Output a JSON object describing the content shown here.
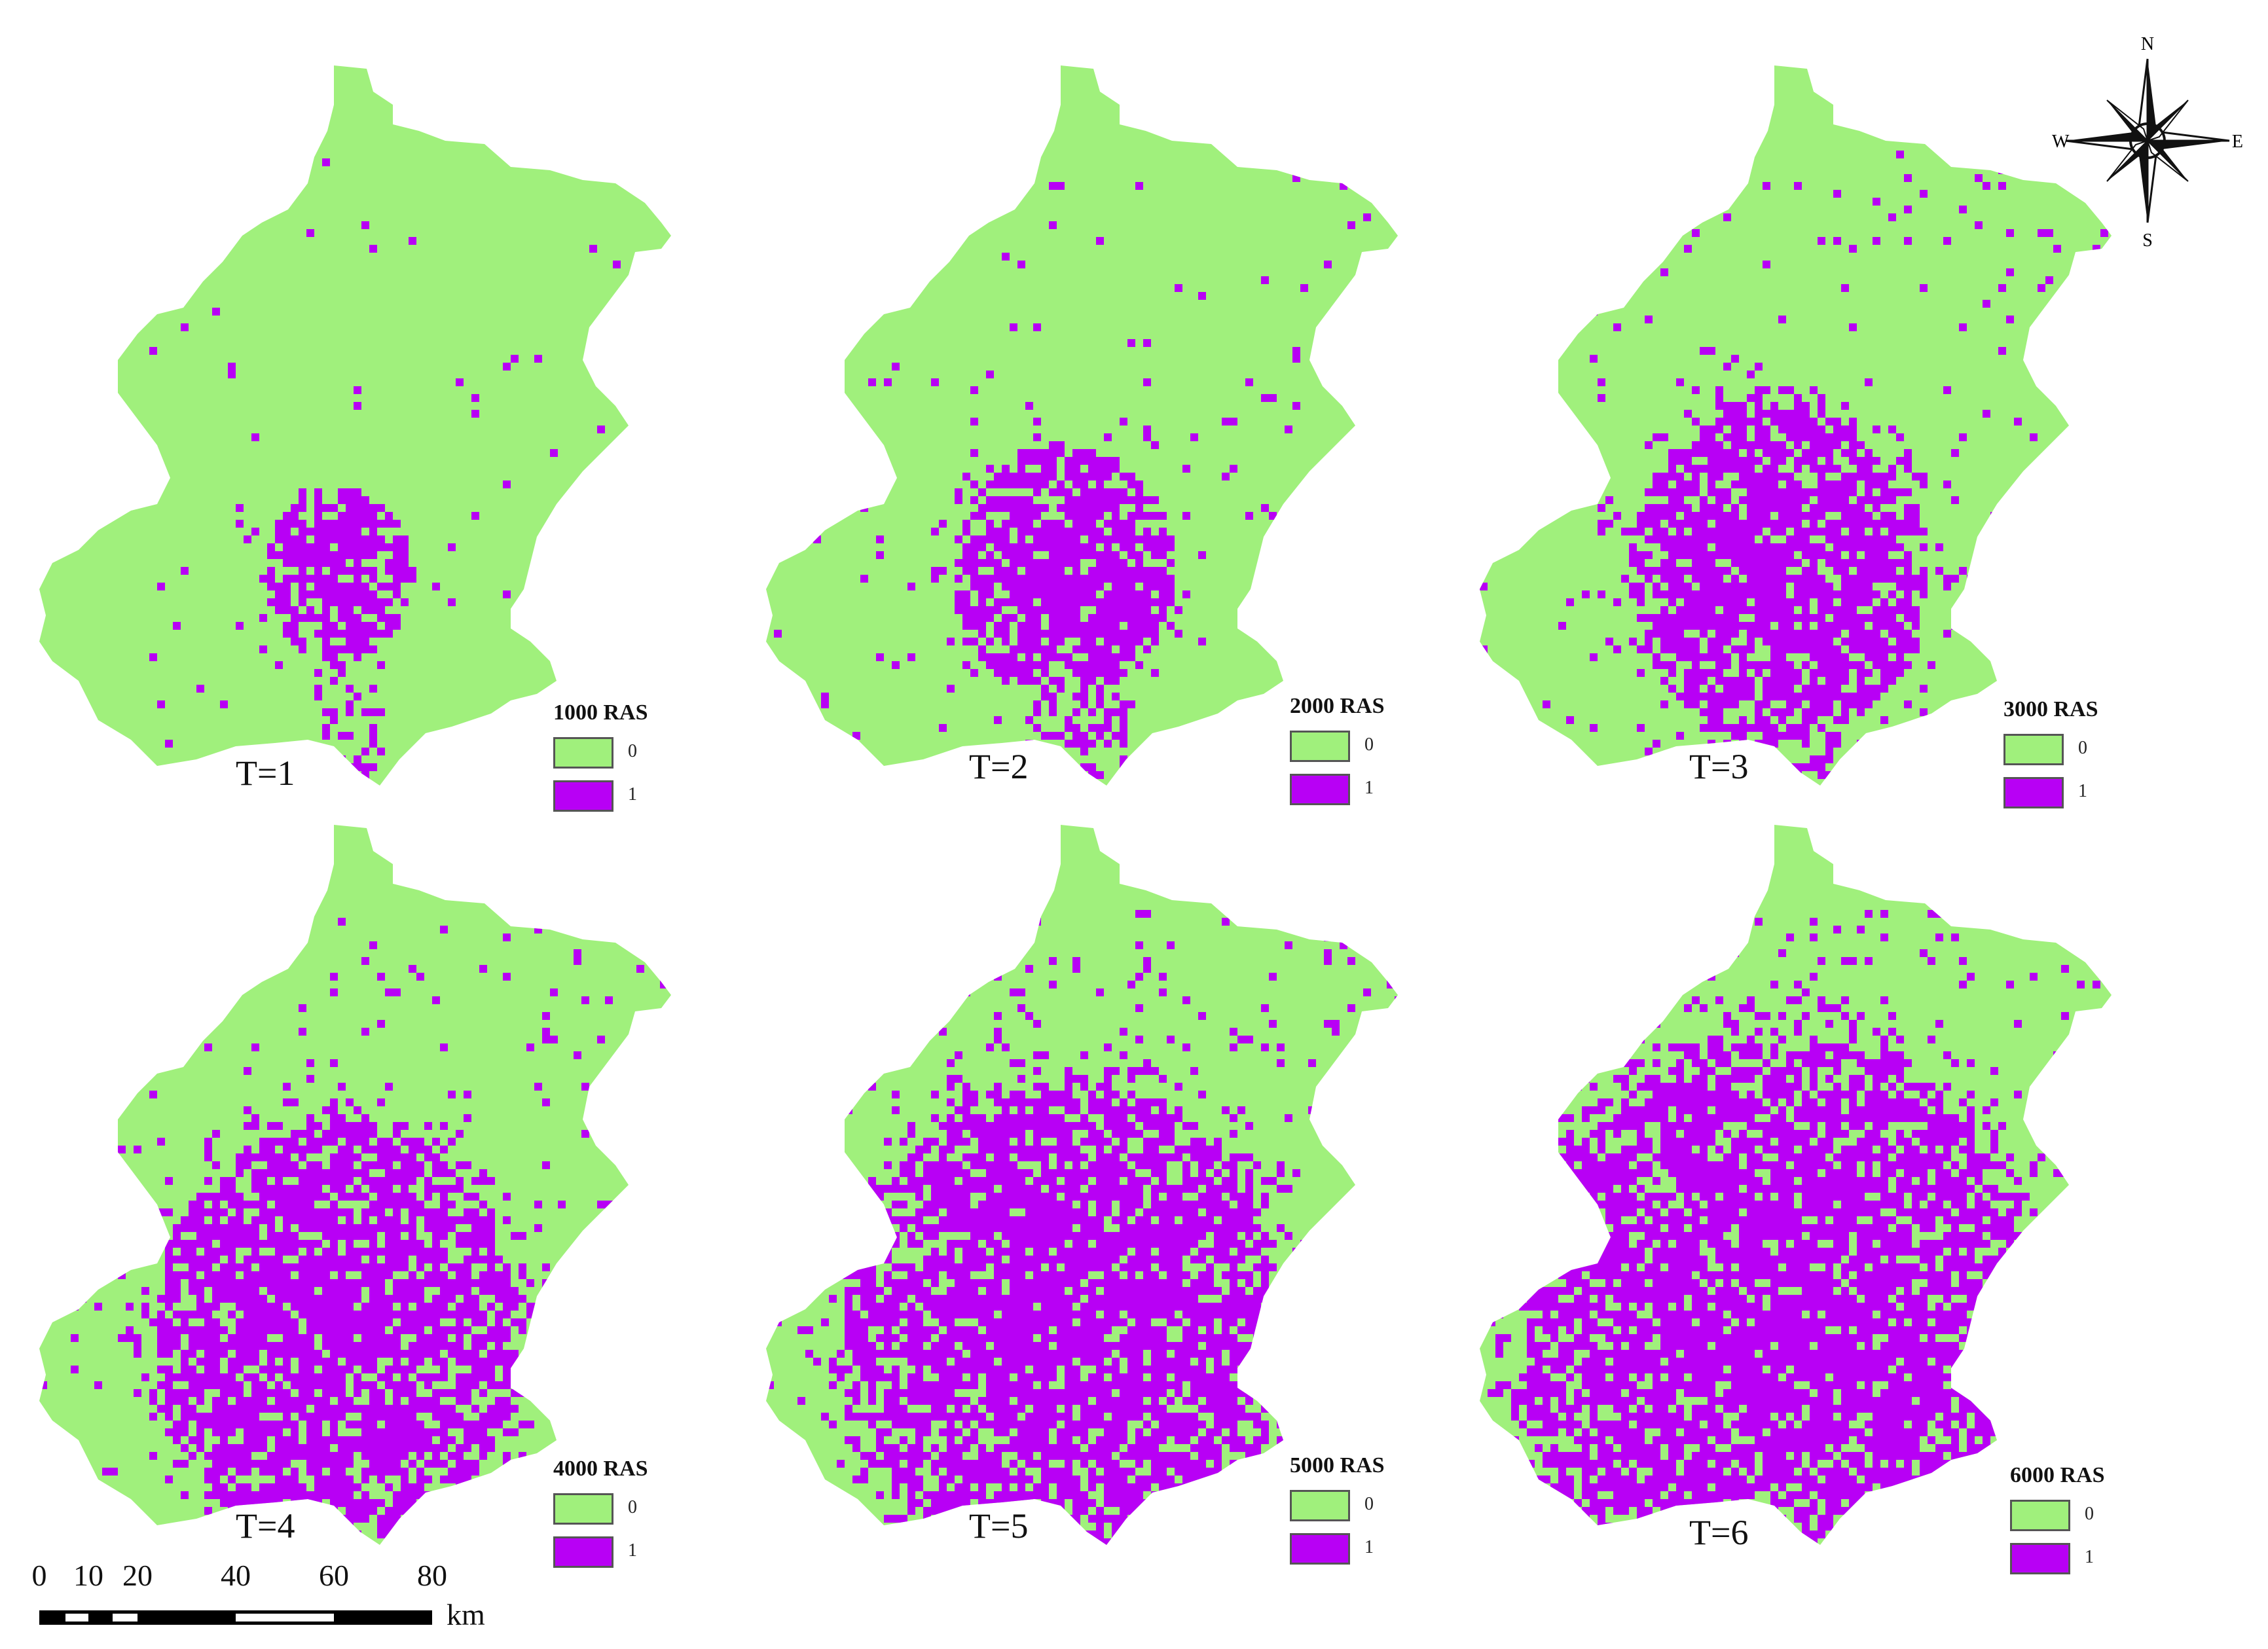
{
  "colors": {
    "class0": "#a0f07c",
    "class1": "#b800f5",
    "ink": "#111111"
  },
  "panels": [
    {
      "t_label": "T=1",
      "legend_title": "1000 RAS",
      "urban_level": 1
    },
    {
      "t_label": "T=2",
      "legend_title": "2000 RAS",
      "urban_level": 2
    },
    {
      "t_label": "T=3",
      "legend_title": "3000 RAS",
      "urban_level": 3
    },
    {
      "t_label": "T=4",
      "legend_title": "4000 RAS",
      "urban_level": 4
    },
    {
      "t_label": "T=5",
      "legend_title": "5000 RAS",
      "urban_level": 5
    },
    {
      "t_label": "T=6",
      "legend_title": "6000 RAS",
      "urban_level": 6
    }
  ],
  "legend_classes": [
    {
      "value": "0"
    },
    {
      "value": "1"
    }
  ],
  "compass": {
    "n": "N",
    "s": "S",
    "e": "E",
    "w": "W"
  },
  "scale_bar": {
    "ticks": [
      "0",
      "10",
      "20",
      "40",
      "60",
      "80"
    ],
    "unit": "km"
  }
}
